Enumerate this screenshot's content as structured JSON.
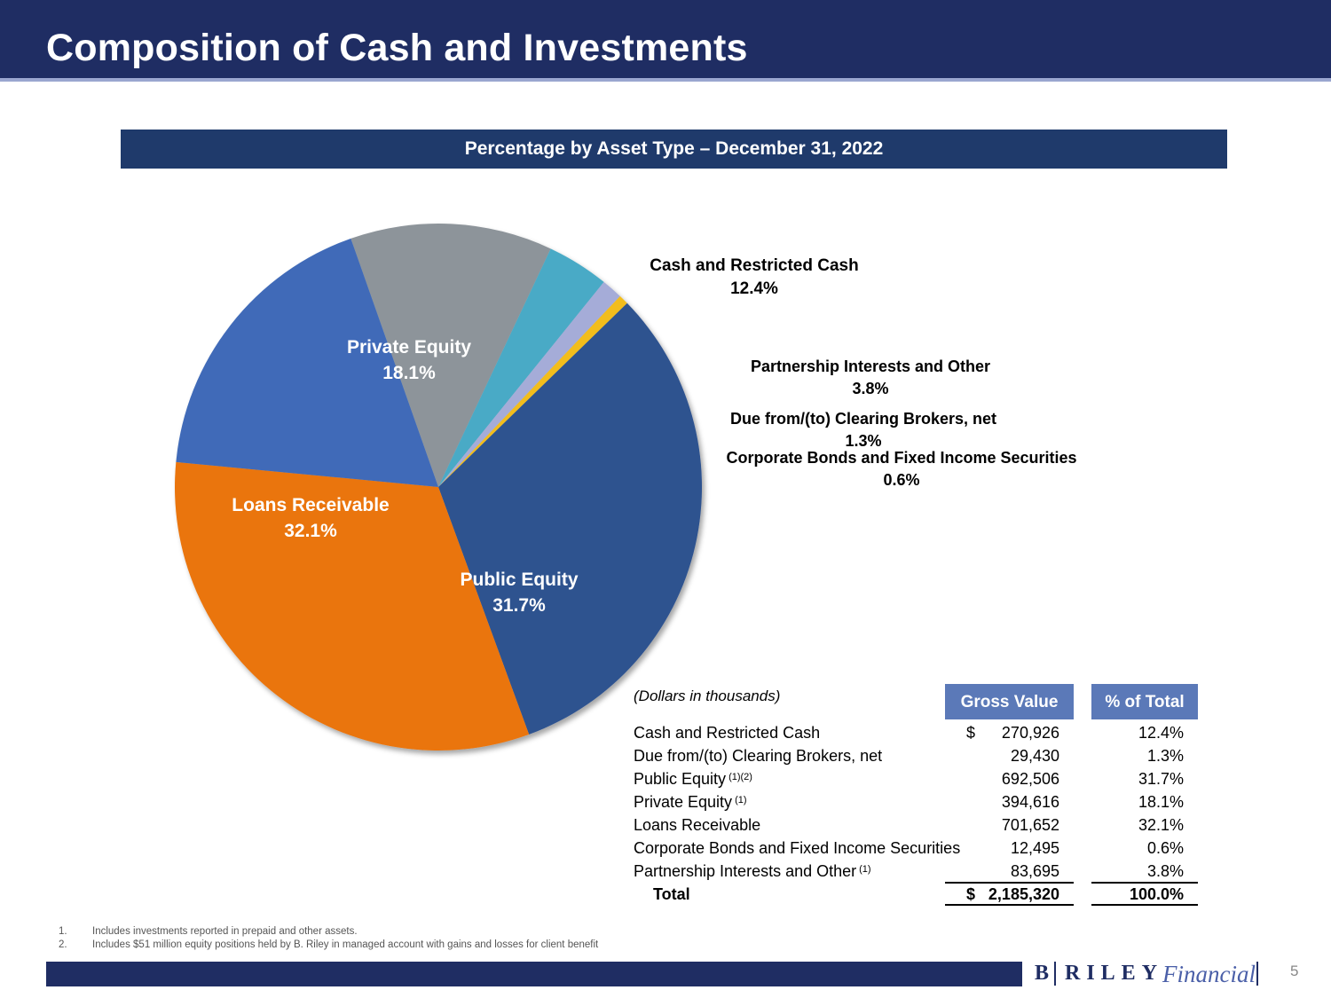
{
  "page": {
    "title": "Composition of Cash and Investments",
    "page_number": "5"
  },
  "chart_banner": "Percentage by Asset Type – December 31, 2022",
  "chart_data": {
    "type": "pie",
    "title": "Percentage by Asset Type – December 31, 2022",
    "slices": [
      {
        "name": "Cash and Restricted Cash",
        "value": 12.4,
        "label": "12.4%",
        "color": "#8d949a"
      },
      {
        "name": "Partnership Interests and Other",
        "value": 3.8,
        "label": "3.8%",
        "color": "#4aaac6"
      },
      {
        "name": "Due from/(to) Clearing Brokers, net",
        "value": 1.3,
        "label": "1.3%",
        "color": "#a5acd8"
      },
      {
        "name": "Corporate Bonds and Fixed Income Securities",
        "value": 0.6,
        "label": "0.6%",
        "color": "#f2bd1a"
      },
      {
        "name": "Public Equity",
        "value": 31.7,
        "label": "31.7%",
        "color": "#2f528f"
      },
      {
        "name": "Loans Receivable",
        "value": 32.1,
        "label": "32.1%",
        "color": "#ea740c"
      },
      {
        "name": "Private Equity",
        "value": 18.1,
        "label": "18.1%",
        "color": "#3f6bb8"
      }
    ]
  },
  "table": {
    "note": "(Dollars in thousands)",
    "col_gross": "Gross Value",
    "col_pct": "% of Total",
    "rows": [
      {
        "label": "Cash and Restricted Cash",
        "sup": "",
        "dollar": "$",
        "gross": "270,926",
        "pct": "12.4%"
      },
      {
        "label": "Due from/(to) Clearing Brokers, net",
        "sup": "",
        "dollar": "",
        "gross": "29,430",
        "pct": "1.3%"
      },
      {
        "label": "Public Equity",
        "sup": "(1)(2)",
        "dollar": "",
        "gross": "692,506",
        "pct": "31.7%"
      },
      {
        "label": "Private Equity",
        "sup": "(1)",
        "dollar": "",
        "gross": "394,616",
        "pct": "18.1%"
      },
      {
        "label": "Loans Receivable",
        "sup": "",
        "dollar": "",
        "gross": "701,652",
        "pct": "32.1%"
      },
      {
        "label": "Corporate Bonds and Fixed Income Securities",
        "sup": "",
        "dollar": "",
        "gross": "12,495",
        "pct": "0.6%"
      },
      {
        "label": "Partnership Interests and Other",
        "sup": "(1)",
        "dollar": "",
        "gross": "83,695",
        "pct": "3.8%"
      }
    ],
    "total": {
      "label": "Total",
      "dollar": "$",
      "gross": "2,185,320",
      "pct": "100.0%"
    }
  },
  "footnotes": [
    {
      "num": "1.",
      "text": "Includes investments reported in prepaid and other assets."
    },
    {
      "num": "2.",
      "text": "Includes $51 million equity positions held by B. Riley in managed account with gains and losses for client benefit"
    }
  ],
  "logo": {
    "b": "B",
    "riley": "RILEY",
    "financial": "Financial"
  }
}
